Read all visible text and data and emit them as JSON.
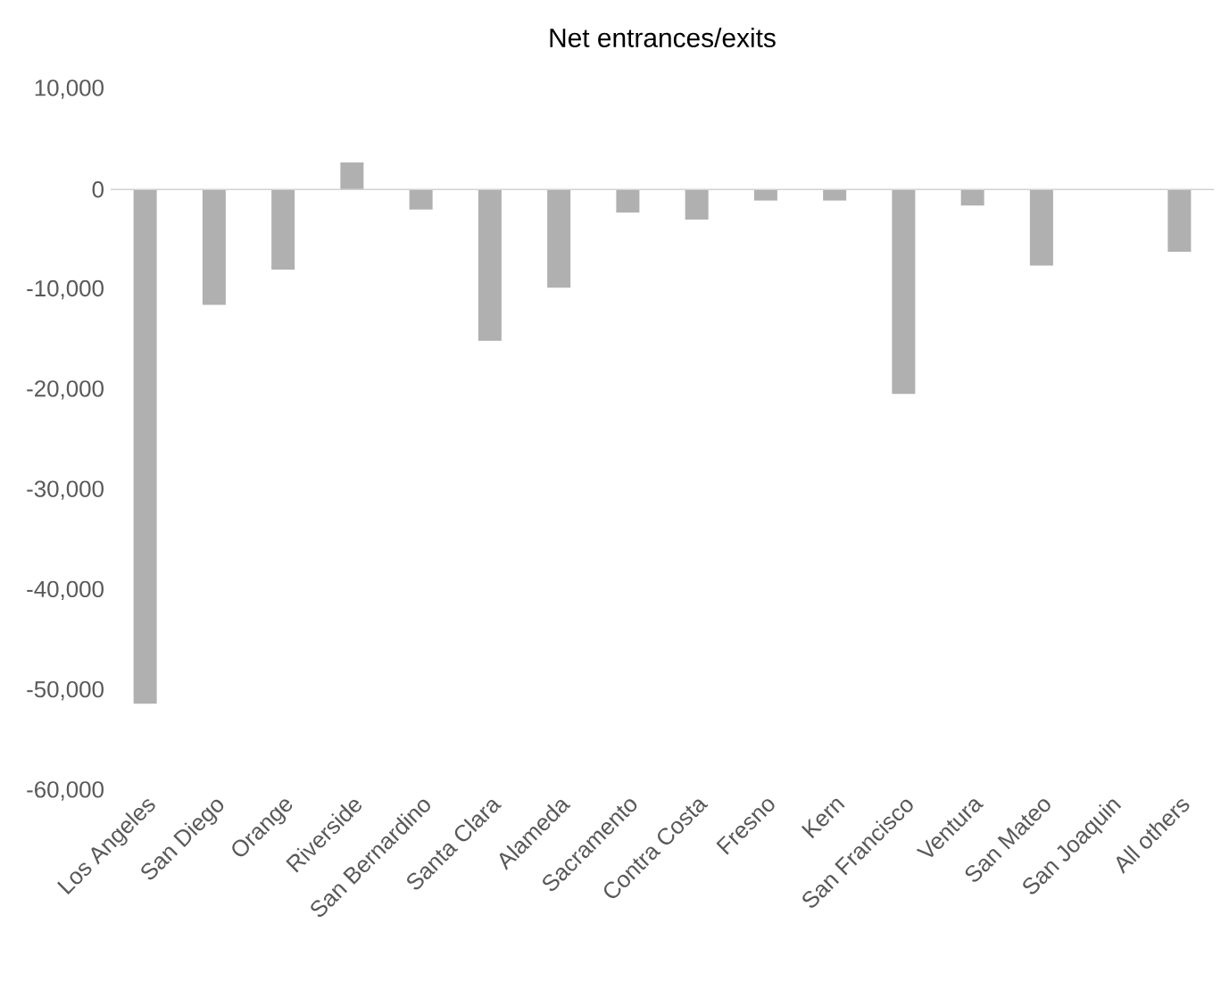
{
  "chart_data": {
    "type": "bar",
    "title": "Net entrances/exits",
    "categories": [
      "Los Angeles",
      "San Diego",
      "Orange",
      "Riverside",
      "San Bernardino",
      "Santa Clara",
      "Alameda",
      "Sacramento",
      "Contra Costa",
      "Fresno",
      "Kern",
      "San Francisco",
      "Ventura",
      "San Mateo",
      "San Joaquin",
      "All others"
    ],
    "values": [
      -51300,
      -11500,
      -8000,
      2700,
      -2000,
      -15100,
      -9800,
      -2300,
      -3000,
      -1100,
      -1100,
      -20400,
      -1600,
      -7600,
      0,
      -6200
    ],
    "color": "#b0b0b0",
    "ylim": [
      -60000,
      10000
    ],
    "yticks": [
      {
        "value": -60000,
        "label": "-60,000"
      },
      {
        "value": -50000,
        "label": "-50,000"
      },
      {
        "value": -40000,
        "label": "-40,000"
      },
      {
        "value": -30000,
        "label": "-30,000"
      },
      {
        "value": -20000,
        "label": "-20,000"
      },
      {
        "value": -10000,
        "label": "-10,000"
      },
      {
        "value": 0,
        "label": "0"
      },
      {
        "value": 10000,
        "label": "10,000"
      }
    ]
  }
}
